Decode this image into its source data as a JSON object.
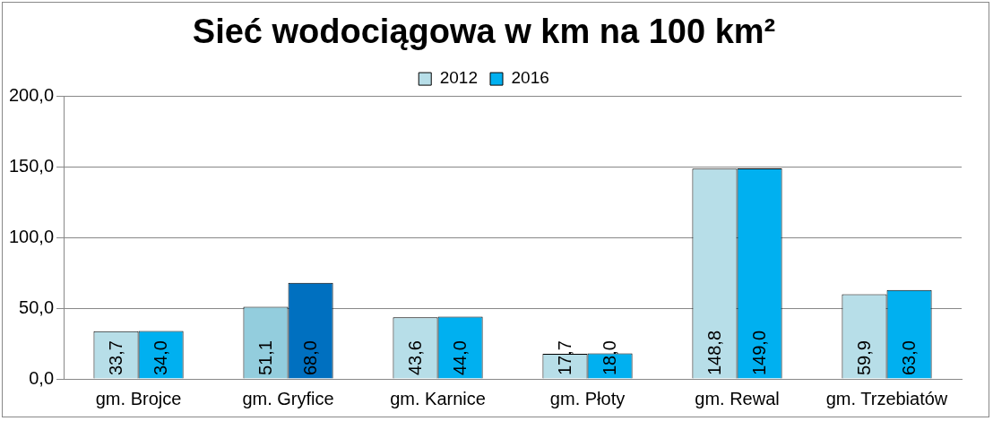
{
  "chart_data": {
    "type": "bar",
    "title": "Sieć wodociągowa w km na 100 km²",
    "categories": [
      "gm. Brojce",
      "gm. Gryfice",
      "gm. Karnice",
      "gm. Płoty",
      "gm. Rewal",
      "gm. Trzebiatów"
    ],
    "series": [
      {
        "name": "2012",
        "color": "#b7dee8",
        "colors": [
          "#b7dee8",
          "#93cddd",
          "#b7dee8",
          "#b7dee8",
          "#b7dee8",
          "#b7dee8"
        ],
        "values": [
          33.7,
          51.1,
          43.6,
          17.7,
          148.8,
          59.9
        ],
        "value_labels": [
          "33,7",
          "51,1",
          "43,6",
          "17,7",
          "148,8",
          "59,9"
        ]
      },
      {
        "name": "2016",
        "color": "#00b0f0",
        "colors": [
          "#00b0f0",
          "#0070c0",
          "#00b0f0",
          "#00b0f0",
          "#00b0f0",
          "#00b0f0"
        ],
        "values": [
          34.0,
          68.0,
          44.0,
          18.0,
          149.0,
          63.0
        ],
        "value_labels": [
          "34,0",
          "68,0",
          "44,0",
          "18,0",
          "149,0",
          "63,0"
        ]
      }
    ],
    "ylim": [
      0,
      200
    ],
    "yticks": [
      {
        "value": 0,
        "label": "0,0"
      },
      {
        "value": 50,
        "label": "50,0"
      },
      {
        "value": 100,
        "label": "100,0"
      },
      {
        "value": 150,
        "label": "150,0"
      },
      {
        "value": 200,
        "label": "200,0"
      }
    ],
    "grid": "y",
    "legend": "top"
  }
}
